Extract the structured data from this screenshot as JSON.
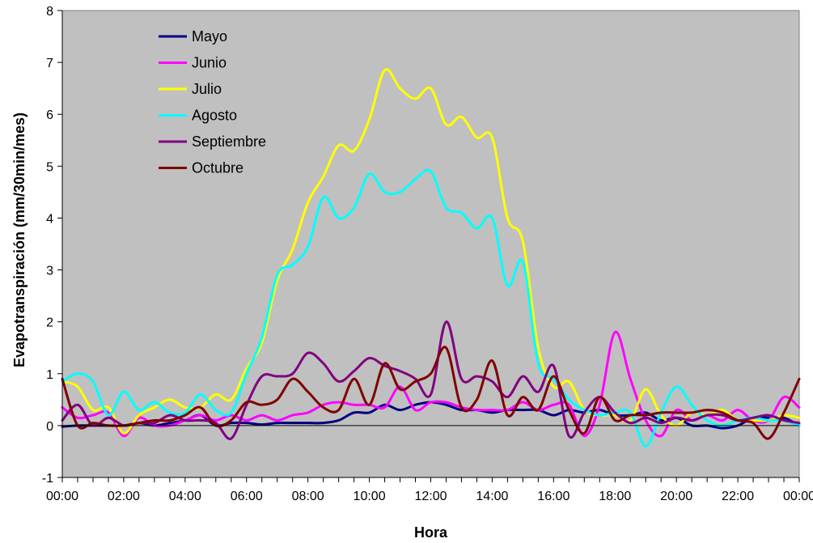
{
  "chart_data": {
    "type": "line",
    "title": "",
    "xlabel": "Hora",
    "ylabel": "Evapotranspiración (mm/30min/mes)",
    "ylim": [
      -1,
      8
    ],
    "y_ticks": [
      "8",
      "7",
      "6",
      "5",
      "4",
      "3",
      "2",
      "1",
      "0",
      "-1"
    ],
    "x_tick_labels": [
      "00:00",
      "02:00",
      "04:00",
      "06:00",
      "08:00",
      "10:00",
      "12:00",
      "14:00",
      "16:00",
      "18:00",
      "20:00",
      "22:00",
      "00:00"
    ],
    "x_unit": "half-hour index 0-48",
    "grid": false,
    "legend_position": "top-left",
    "plot_background": "#c0c0c0",
    "series": [
      {
        "name": "Mayo",
        "color": "#000080",
        "values": [
          -0.02,
          0.0,
          0.0,
          0.0,
          0.0,
          0.05,
          0.0,
          0.05,
          0.1,
          0.2,
          0.0,
          0.05,
          0.05,
          0.02,
          0.05,
          0.05,
          0.05,
          0.05,
          0.1,
          0.25,
          0.25,
          0.4,
          0.3,
          0.4,
          0.45,
          0.4,
          0.3,
          0.3,
          0.25,
          0.3,
          0.3,
          0.3,
          0.2,
          0.3,
          0.25,
          0.3,
          0.2,
          0.2,
          0.25,
          0.1,
          0.15,
          0.0,
          0.0,
          -0.05,
          0.0,
          0.15,
          0.15,
          0.15,
          0.0
        ]
      },
      {
        "name": "Junio",
        "color": "#ff00ff",
        "values": [
          0.35,
          0.15,
          0.2,
          0.25,
          -0.2,
          0.15,
          0.0,
          0.0,
          0.1,
          0.2,
          0.1,
          0.2,
          0.1,
          0.2,
          0.1,
          0.2,
          0.25,
          0.4,
          0.45,
          0.4,
          0.4,
          0.35,
          0.75,
          0.3,
          0.45,
          0.45,
          0.35,
          0.3,
          0.3,
          0.3,
          0.45,
          0.3,
          0.4,
          0.4,
          -0.2,
          0.4,
          1.8,
          0.9,
          0.1,
          -0.2,
          0.3,
          0.1,
          0.2,
          0.1,
          0.3,
          0.1,
          0.1,
          0.55,
          0.35
        ]
      },
      {
        "name": "Julio",
        "color": "#ffff00",
        "values": [
          0.85,
          0.75,
          0.3,
          0.35,
          -0.15,
          0.2,
          0.35,
          0.5,
          0.35,
          0.35,
          0.6,
          0.5,
          1.1,
          1.6,
          2.8,
          3.4,
          4.3,
          4.8,
          5.4,
          5.3,
          5.9,
          6.85,
          6.5,
          6.3,
          6.5,
          5.8,
          5.95,
          5.55,
          5.55,
          4.0,
          3.55,
          1.5,
          0.75,
          0.85,
          0.3,
          0.2,
          0.2,
          0.1,
          0.7,
          0.2,
          0.0,
          0.25,
          0.2,
          0.3,
          0.1,
          0.1,
          0.1,
          0.2,
          0.15
        ]
      },
      {
        "name": "Agosto",
        "color": "#00ffff",
        "values": [
          0.85,
          1.0,
          0.85,
          0.2,
          0.65,
          0.3,
          0.45,
          0.25,
          0.25,
          0.6,
          0.3,
          0.25,
          1.0,
          1.7,
          2.9,
          3.1,
          3.45,
          4.4,
          4.0,
          4.2,
          4.85,
          4.5,
          4.5,
          4.75,
          4.9,
          4.2,
          4.1,
          3.8,
          4.0,
          2.7,
          3.15,
          1.2,
          0.9,
          0.5,
          0.3,
          0.2,
          0.25,
          0.25,
          -0.4,
          0.25,
          0.75,
          0.4,
          0.1,
          0.0,
          0.1,
          0.15,
          0.1,
          0.1,
          0.0
        ]
      },
      {
        "name": "Septiembre",
        "color": "#800080",
        "values": [
          0.1,
          0.4,
          0.0,
          0.15,
          0.0,
          0.05,
          0.05,
          0.2,
          0.1,
          0.1,
          0.05,
          -0.25,
          0.4,
          0.95,
          0.95,
          1.0,
          1.4,
          1.2,
          0.85,
          1.05,
          1.3,
          1.15,
          1.05,
          0.9,
          0.6,
          2.0,
          0.9,
          0.95,
          0.85,
          0.55,
          0.95,
          0.65,
          1.15,
          -0.2,
          0.25,
          0.55,
          0.25,
          0.05,
          0.15,
          0.05,
          0.15,
          0.1,
          0.2,
          0.2,
          0.1,
          0.15,
          0.2,
          0.1,
          0.05
        ]
      },
      {
        "name": "Octubre",
        "color": "#800000",
        "values": [
          0.9,
          0.0,
          0.05,
          0.0,
          0.0,
          0.05,
          0.1,
          0.1,
          0.2,
          0.35,
          0.0,
          0.1,
          0.45,
          0.4,
          0.5,
          0.9,
          0.65,
          0.35,
          0.3,
          0.9,
          0.4,
          1.2,
          0.7,
          0.85,
          1.0,
          1.5,
          0.35,
          0.5,
          1.25,
          0.2,
          0.55,
          0.3,
          0.95,
          0.3,
          -0.15,
          0.55,
          0.1,
          0.2,
          0.2,
          0.25,
          0.25,
          0.25,
          0.3,
          0.25,
          0.1,
          0.05,
          -0.25,
          0.25,
          0.9
        ]
      }
    ]
  }
}
